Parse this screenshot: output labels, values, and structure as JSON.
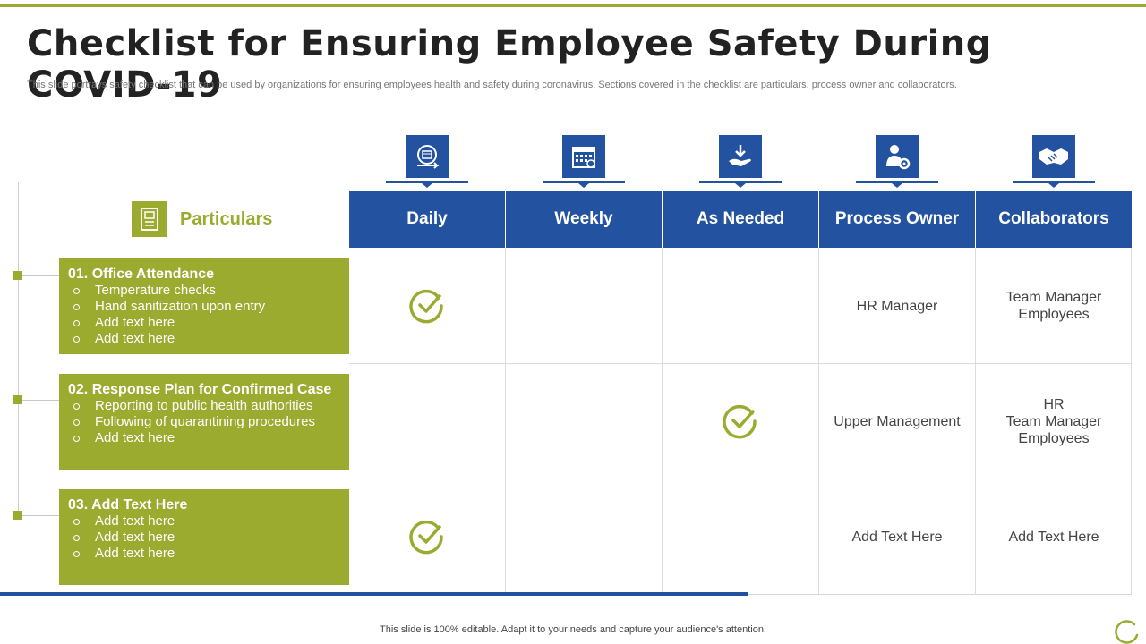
{
  "slide": {
    "title": "Checklist for Ensuring Employee Safety During COVID-19",
    "subtitle": "This slide portrays safety checklist that can be used by organizations for ensuring employees health and safety during coronavirus. Sections covered in the checklist are particulars, process owner and collaborators.",
    "footer": "This slide is 100% editable. Adapt it to your needs and capture your audience's attention."
  },
  "colors": {
    "accent_green": "#9aab2f",
    "accent_blue": "#2353a0"
  },
  "particulars_header": {
    "label": "Particulars",
    "icon": "document-icon"
  },
  "columns": [
    {
      "label": "Daily",
      "icon": "daily-schedule-icon"
    },
    {
      "label": "Weekly",
      "icon": "calendar-icon"
    },
    {
      "label": "As Needed",
      "icon": "hand-download-icon"
    },
    {
      "label": "Process Owner",
      "icon": "person-gear-icon"
    },
    {
      "label": "Collaborators",
      "icon": "handshake-icon"
    }
  ],
  "rows": [
    {
      "title": "01. Office Attendance",
      "items": [
        "Temperature checks",
        "Hand sanitization upon entry",
        "Add text here",
        "Add text here"
      ],
      "daily": true,
      "weekly": false,
      "as_needed": false,
      "process_owner": "HR Manager",
      "collaborators": [
        "Team Manager",
        "Employees"
      ]
    },
    {
      "title": "02. Response Plan for Confirmed Case",
      "items": [
        "Reporting to public health authorities",
        "Following of quarantining procedures",
        "Add text here"
      ],
      "daily": false,
      "weekly": false,
      "as_needed": true,
      "process_owner": "Upper Management",
      "collaborators": [
        "HR",
        "Team Manager",
        "Employees"
      ]
    },
    {
      "title": "03. Add Text Here",
      "items": [
        "Add text here",
        "Add text here",
        "Add text here"
      ],
      "daily": true,
      "weekly": false,
      "as_needed": false,
      "process_owner": "Add Text Here",
      "collaborators": [
        "Add Text Here"
      ]
    }
  ]
}
